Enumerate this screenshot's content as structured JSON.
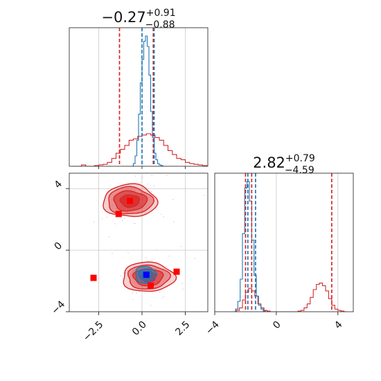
{
  "colors": {
    "red": "#d62728",
    "blue": "#1f77b4",
    "marker_red": "#ff0000",
    "marker_blue": "#0000ff"
  },
  "chart_data": [
    {
      "type": "histogram",
      "panel": "diag-x",
      "title": {
        "main": "−0.27",
        "plus": "+0.91",
        "minus": "−0.88"
      },
      "xlim": [
        -4.2,
        3.8
      ],
      "grid": true,
      "series": [
        {
          "name": "",
          "color": "#d62728",
          "bins": [
            -4.0,
            -3.75,
            -3.5,
            -3.25,
            -3.0,
            -2.75,
            -2.5,
            -2.25,
            -2.0,
            -1.75,
            -1.5,
            -1.25,
            -1.0,
            -0.75,
            -0.5,
            -0.25,
            0.0,
            0.25,
            0.5,
            0.75,
            1.0,
            1.25,
            1.5,
            1.75,
            2.0,
            2.25,
            2.5,
            2.75,
            3.0,
            3.25,
            3.5,
            3.75
          ],
          "counts": [
            0,
            0,
            0.01,
            0,
            0,
            0.005,
            0.01,
            0.015,
            0.03,
            0.06,
            0.1,
            0.13,
            0.16,
            0.2,
            0.21,
            0.23,
            0.24,
            0.25,
            0.24,
            0.22,
            0.2,
            0.16,
            0.12,
            0.09,
            0.06,
            0.05,
            0.03,
            0.02,
            0.015,
            0.01,
            0.005
          ]
        },
        {
          "name": "",
          "color": "#1f77b4",
          "bins": [
            -0.6,
            -0.5,
            -0.4,
            -0.3,
            -0.2,
            -0.1,
            0.0,
            0.1,
            0.2,
            0.3,
            0.4,
            0.5,
            0.6,
            0.7,
            0.8,
            0.9,
            1.0,
            1.1,
            1.2,
            1.3
          ],
          "counts": [
            0,
            0.02,
            0.08,
            0.2,
            0.4,
            0.64,
            0.82,
            0.96,
            1.0,
            0.92,
            0.7,
            0.42,
            0.22,
            0.1,
            0.05,
            0.02,
            0.01,
            0.005,
            0
          ]
        }
      ],
      "vlines": [
        {
          "x": -1.3,
          "color": "#d62728"
        },
        {
          "x": 0.0,
          "color": "#1f77b4"
        },
        {
          "x": 0.65,
          "color": "#d62728"
        },
        {
          "x": 0.7,
          "color": "#1f77b4"
        }
      ]
    },
    {
      "type": "scatter",
      "panel": "joint",
      "xlim": [
        -4.2,
        3.8
      ],
      "ylim": [
        -4.0,
        5.0
      ],
      "xticks": [
        "−2.5",
        "0.0",
        "2.5"
      ],
      "xtick_values": [
        -2.5,
        0.0,
        2.5
      ],
      "yticks": [
        "−4",
        "0",
        "4"
      ],
      "ytick_values": [
        -4,
        0,
        4
      ],
      "grid": true,
      "clusters": [
        {
          "color": "#d62728",
          "center": [
            -0.7,
            3.2
          ],
          "levels": [
            [
              1.55,
              1.05
            ],
            [
              1.3,
              0.88
            ],
            [
              0.95,
              0.65
            ],
            [
              0.55,
              0.4
            ]
          ]
        },
        {
          "color": "#d62728",
          "center": [
            0.35,
            -1.75
          ],
          "levels": [
            [
              1.5,
              0.95
            ],
            [
              1.2,
              0.78
            ],
            [
              0.85,
              0.55
            ],
            [
              0.45,
              0.3
            ]
          ]
        },
        {
          "color": "#1f77b4",
          "center": [
            0.2,
            -1.6
          ],
          "levels": [
            [
              0.6,
              0.55
            ],
            [
              0.4,
              0.36
            ],
            [
              0.2,
              0.18
            ]
          ]
        }
      ],
      "markers": [
        {
          "x": -0.7,
          "y": 3.2,
          "color": "#ff0000"
        },
        {
          "x": -1.35,
          "y": 2.35,
          "color": "#ff0000"
        },
        {
          "x": -2.8,
          "y": -1.8,
          "color": "#ff0000"
        },
        {
          "x": 2.0,
          "y": -1.4,
          "color": "#ff0000"
        },
        {
          "x": 0.5,
          "y": -2.3,
          "color": "#ff0000"
        },
        {
          "x": 0.25,
          "y": -1.6,
          "color": "#0000ff"
        }
      ]
    },
    {
      "type": "histogram",
      "panel": "diag-y",
      "title": {
        "main": "2.82",
        "plus": "+0.79",
        "minus": "−4.59"
      },
      "xlim": [
        -4.0,
        5.0
      ],
      "xticks": [
        "−4",
        "0",
        "4"
      ],
      "xtick_values": [
        -4,
        0,
        4
      ],
      "grid": true,
      "series": [
        {
          "name": "",
          "color": "#d62728",
          "bins": [
            -2.8,
            -2.6,
            -2.4,
            -2.2,
            -2.0,
            -1.8,
            -1.6,
            -1.4,
            -1.2,
            -1.0,
            -0.8,
            -0.6,
            -0.4,
            -0.2,
            0.0,
            0.2,
            0.4,
            0.6,
            0.8,
            1.0,
            1.2,
            1.4,
            1.6,
            1.8,
            2.0,
            2.2,
            2.4,
            2.6,
            2.8,
            3.0,
            3.2,
            3.4,
            3.6,
            3.8,
            4.0,
            4.2,
            4.4,
            4.6
          ],
          "counts": [
            0,
            0.01,
            0.03,
            0.09,
            0.15,
            0.18,
            0.16,
            0.12,
            0.06,
            0.03,
            0.01,
            0.005,
            0,
            0,
            0,
            0,
            0,
            0,
            0,
            0,
            0,
            0.005,
            0.01,
            0.03,
            0.06,
            0.11,
            0.17,
            0.21,
            0.22,
            0.2,
            0.16,
            0.1,
            0.05,
            0.02,
            0.01,
            0.005,
            0
          ]
        },
        {
          "name": "",
          "color": "#1f77b4",
          "bins": [
            -2.8,
            -2.65,
            -2.5,
            -2.35,
            -2.2,
            -2.05,
            -1.9,
            -1.75,
            -1.6,
            -1.45,
            -1.3,
            -1.15,
            -1.0,
            -0.85,
            -0.7,
            -0.55
          ],
          "counts": [
            0,
            0.02,
            0.08,
            0.25,
            0.6,
            0.95,
            1.0,
            0.85,
            0.55,
            0.28,
            0.12,
            0.05,
            0.02,
            0.005,
            0
          ]
        }
      ],
      "vlines": [
        {
          "x": -2.0,
          "color": "#d62728"
        },
        {
          "x": -1.85,
          "color": "#1f77b4"
        },
        {
          "x": -1.6,
          "color": "#d62728"
        },
        {
          "x": -1.35,
          "color": "#1f77b4"
        },
        {
          "x": 3.6,
          "color": "#d62728"
        }
      ]
    }
  ]
}
